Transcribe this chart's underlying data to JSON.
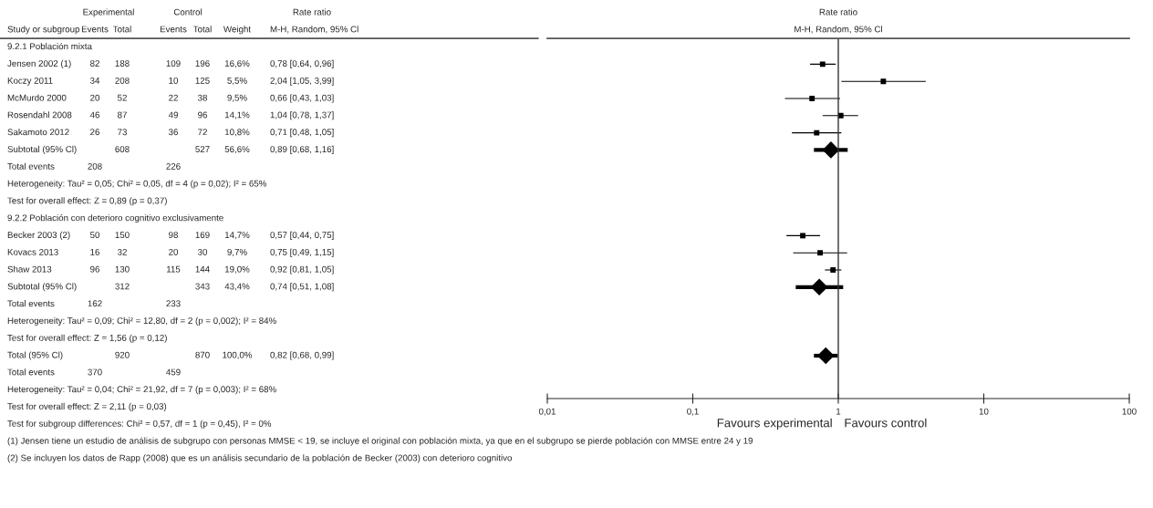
{
  "chart_data": [
    {
      "type": "other",
      "annotations": [
        "\tExperimental\t\tControl\t\t\tRate ratio",
        "Study or subgroup\tEvents\tTotal\tEvents\tTotal\tWeight\tM-H, Random, 95% Cl",
        "9.2.1 Población mixta",
        "Jensen 2002 (1)\t82\t188\t109\t196\t16,6%\t0,78 [0,64, 0,96]",
        "Koczy 2011\t34\t208\t10\t125\t5,5%\t2,04 [1,05, 3,99]",
        "McMurdo 2000\t20\t52\t22\t38\t9,5%\t0,66 [0,43, 1,03]",
        "Rosendahl 2008\t46\t87\t49\t96\t14,1%\t1,04 [0,78, 1,37]",
        "Sakamoto 2012\t26\t73\t36\t72\t10,8%\t0,71 [0,48, 1,05]",
        "Subtotal (95% Cl)\t\t608\t\t527\t56,6%\t0,89 [0,68, 1,16]",
        "Total events\t208\t\t226",
        "Heterogeneity: Tau² = 0,05; Chi² = 0,05, df = 4 (p = 0,02); I² = 65%",
        "Test for overall effect: Z = 0,89 (p = 0,37)",
        "9.2.2 Población con deterioro cognitivo exclusivamente",
        "Becker 2003 (2)\t50\t150\t98\t169\t14,7%\t0,57 [0,44, 0,75]",
        "Kovacs 2013\t16\t32\t20\t30\t9,7%\t0,75 [0,49, 1,15]",
        "Shaw 2013\t96\t130\t115\t144\t19,0%\t0,92 [0,81, 1,05]",
        "Subtotal (95% Cl)\t\t312\t\t343\t43,4%\t0,74 [0,51, 1,08]",
        "Total events\t162\t\t233",
        "Heterogeneity: Tau² = 0,09; Chi² = 12,80, df = 2 (p = 0,002); I² = 84%",
        "Test for overall effect: Z = 1,56 (p = 0,12)",
        "Total (95% Cl)\t\t920\t\t870\t100,0%\t0,82 [0,68, 0,99]",
        "Total events\t370\t\t459",
        "Heterogeneity: Tau² = 0,04; Chi² = 21,92, df = 7 (p = 0,003); I² = 68%",
        "Test for overall effect: Z = 2,11 (p = 0,03)",
        "Test for subgroup differences: Chi² = 0,57, df = 1 (p = 0,45), I² = 0%",
        "(1) Jensen tiene un estudio de análisis de subgrupo con personas MMSE < 19, se incluye el original con población mixta, ya que en el subgrupo se pierde población con MMSE entre 24 y 19",
        "(2) Se incluyen los datos de Rapp (2008) que es un análisis secundario de la población de Becker (2003) con deterioro cognitivo"
      ]
    },
    {
      "type": "scatter",
      "orientation": "horizontal",
      "title": "Rate ratio",
      "subtitle": "M-H, Random, 95% Cl",
      "annotations": [
        "Favours experimental",
        "Favours control"
      ],
      "categories": [
        null,
        null,
        null,
        null,
        null,
        null,
        null,
        null,
        null,
        null,
        null,
        null,
        null,
        null,
        null,
        null,
        null,
        null,
        null,
        null,
        null
      ],
      "series": [
        {
          "marker": "square",
          "color": "#000000",
          "values": [
            null,
            0.78,
            2.04,
            0.66,
            1.04,
            0.71,
            null,
            null,
            null,
            null,
            null,
            0.57,
            0.75,
            0.92,
            null,
            null,
            null,
            null,
            null,
            null,
            null
          ],
          "errors": [
            null,
            [
              0.64,
              0.96
            ],
            [
              1.05,
              3.99
            ],
            [
              0.43,
              1.03
            ],
            [
              0.78,
              1.37
            ],
            [
              0.48,
              1.05
            ],
            null,
            null,
            null,
            null,
            null,
            [
              0.44,
              0.75
            ],
            [
              0.49,
              1.15
            ],
            [
              0.81,
              1.05
            ],
            null,
            null,
            null,
            null,
            null,
            null,
            null
          ]
        },
        {
          "marker": "diamond",
          "color": "#000000",
          "values": [
            null,
            null,
            null,
            null,
            null,
            null,
            0.89,
            null,
            null,
            null,
            null,
            null,
            null,
            null,
            0.74,
            null,
            null,
            null,
            0.82,
            null,
            null
          ],
          "errors": [
            null,
            null,
            null,
            null,
            null,
            null,
            [
              0.68,
              1.16
            ],
            null,
            null,
            null,
            null,
            null,
            null,
            null,
            [
              0.51,
              1.08
            ],
            null,
            null,
            null,
            [
              0.68,
              0.99
            ],
            null,
            null
          ]
        }
      ],
      "log": "x",
      "xlim": [
        0.01,
        100
      ],
      "xticks": [
        {
          "value": 0.01,
          "label": "0,01"
        },
        {
          "value": 0.1,
          "label": "0,1"
        },
        1,
        10,
        100
      ],
      "ref_lines": [
        {
          "axis": "x",
          "value": 1
        }
      ],
      "tick_labels": "x"
    }
  ]
}
